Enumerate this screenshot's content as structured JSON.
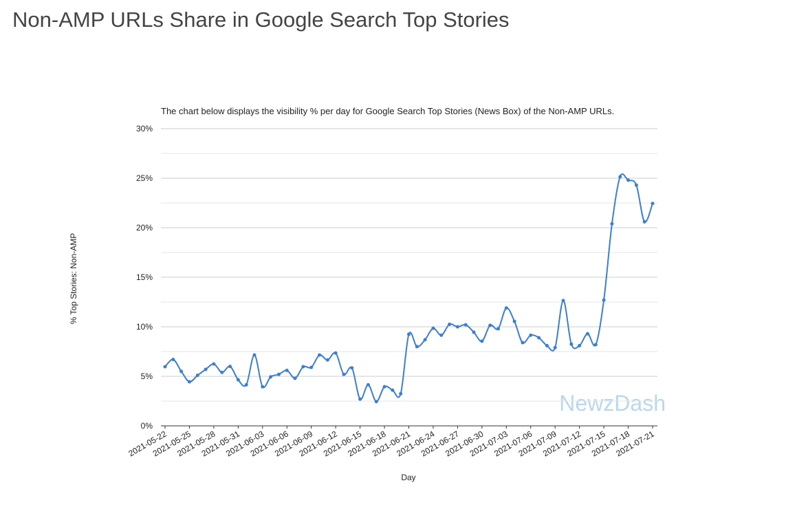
{
  "page_title": "Non-AMP URLs Share in Google Search Top Stories",
  "watermark": "NewzDash",
  "chart_data": {
    "type": "line",
    "title": "The chart below displays the visibility % per day for Google Search Top Stories (News Box) of the Non-AMP URLs.",
    "x_label": "Day",
    "y_label": "% Top Stories: Non-AMP",
    "categories": [
      "2021-05-22",
      null,
      null,
      "2021-05-25",
      null,
      null,
      "2021-05-28",
      null,
      null,
      "2021-05-31",
      null,
      null,
      "2021-06-03",
      null,
      null,
      "2021-06-06",
      null,
      null,
      "2021-06-09",
      null,
      null,
      "2021-06-12",
      null,
      null,
      "2021-06-15",
      null,
      null,
      "2021-06-18",
      null,
      null,
      "2021-06-21",
      null,
      null,
      "2021-06-24",
      null,
      null,
      "2021-06-27",
      null,
      null,
      "2021-06-30",
      null,
      null,
      "2021-07-03",
      null,
      null,
      "2021-07-06",
      null,
      null,
      "2021-07-09",
      null,
      null,
      "2021-07-12",
      null,
      null,
      "2021-07-15",
      null,
      null,
      "2021-07-18",
      null,
      null,
      "2021-07-21"
    ],
    "values": [
      5.97,
      6.7,
      5.5,
      4.45,
      5.1,
      5.7,
      6.25,
      5.4,
      6.0,
      4.65,
      4.15,
      7.15,
      3.95,
      4.95,
      5.2,
      5.6,
      4.8,
      5.97,
      5.9,
      7.15,
      6.65,
      7.35,
      5.2,
      5.85,
      2.7,
      4.15,
      2.45,
      3.95,
      3.6,
      3.25,
      9.25,
      8.0,
      8.7,
      9.85,
      9.15,
      10.25,
      10.0,
      10.2,
      9.45,
      8.55,
      10.15,
      9.8,
      11.9,
      10.55,
      8.4,
      9.15,
      8.9,
      8.1,
      7.9,
      12.65,
      8.25,
      8.1,
      9.3,
      8.2,
      12.7,
      20.4,
      25.15,
      24.8,
      24.3,
      20.6,
      22.45
    ],
    "color": "#3a7fd0",
    "ylim": [
      0,
      30
    ],
    "yticks": [
      {
        "value": 0,
        "label": "0%"
      },
      {
        "value": 5,
        "label": "5%"
      },
      {
        "value": 10,
        "label": "10%"
      },
      {
        "value": 15,
        "label": "15%"
      },
      {
        "value": 20,
        "label": "20%"
      },
      {
        "value": 25,
        "label": "25%"
      },
      {
        "value": 30,
        "label": "30%"
      }
    ],
    "minor_yticks": [
      2.5,
      7.5,
      12.5,
      17.5,
      22.5,
      27.5
    ],
    "grid": true,
    "smooth": true
  }
}
